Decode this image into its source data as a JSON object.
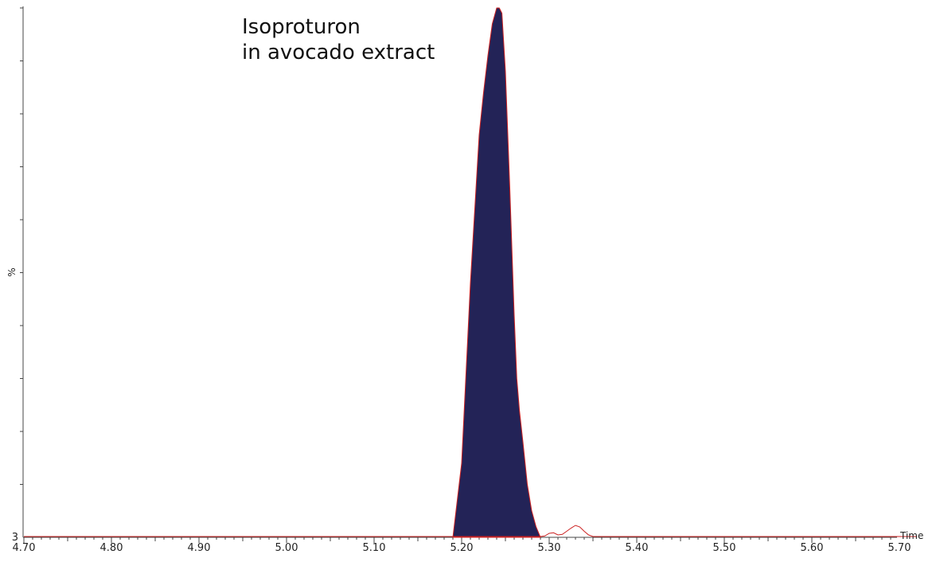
{
  "chart_data": {
    "type": "area",
    "title": "",
    "annotation": [
      "Isoproturon",
      "in avocado extract"
    ],
    "xlabel": "Time",
    "ylabel": "%",
    "xlim": [
      4.7,
      5.72
    ],
    "ylim": [
      0,
      100
    ],
    "x_ticks": [
      "4.70",
      "4.80",
      "4.90",
      "5.00",
      "5.10",
      "5.20",
      "5.30",
      "5.40",
      "5.50",
      "5.60",
      "5.70"
    ],
    "y_min_label": "3",
    "grid": false,
    "series": [
      {
        "kind": "filled-peak",
        "fill_color": "#232357",
        "outline_color": "#cc2222",
        "x": [
          5.19,
          5.2,
          5.21,
          5.22,
          5.225,
          5.23,
          5.235,
          5.24,
          5.243,
          5.246,
          5.25,
          5.255,
          5.26,
          5.263,
          5.266,
          5.27,
          5.275,
          5.28,
          5.285,
          5.29
        ],
        "y": [
          0,
          14,
          48,
          76,
          84,
          91,
          97,
          100,
          100,
          99,
          88,
          66,
          42,
          30,
          24,
          18,
          10,
          5,
          2,
          0
        ]
      },
      {
        "kind": "trace",
        "color": "#cc2222",
        "x": [
          4.7,
          5.1,
          5.19,
          5.29,
          5.295,
          5.3,
          5.305,
          5.31,
          5.315,
          5.32,
          5.325,
          5.33,
          5.335,
          5.34,
          5.345,
          5.35,
          5.4,
          5.5,
          5.72
        ],
        "y": [
          0,
          0,
          0,
          0,
          0.1,
          0.6,
          0.7,
          0.3,
          0.4,
          1.0,
          1.6,
          2.1,
          1.8,
          1.0,
          0.3,
          0,
          0,
          0,
          0
        ]
      }
    ],
    "colors": {
      "peak_fill": "#232357",
      "trace": "#cc2222",
      "axis": "#444444"
    }
  }
}
